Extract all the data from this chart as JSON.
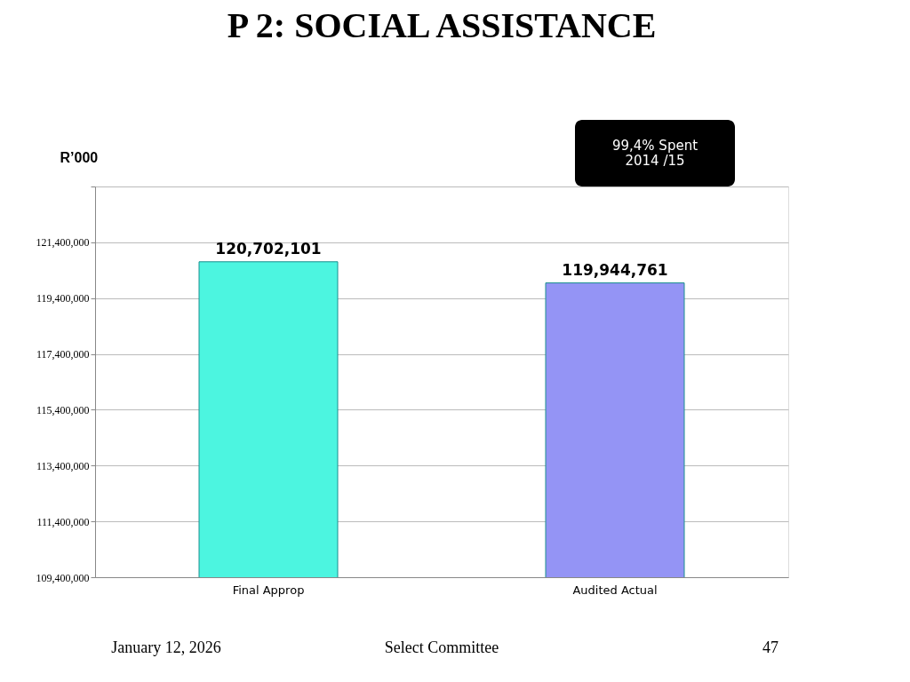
{
  "chart_data": {
    "type": "bar",
    "title": "P 2: SOCIAL ASSISTANCE",
    "ylabel": "R’000",
    "categories": [
      "Final Approp",
      "Audited Actual"
    ],
    "values": [
      120702101,
      119944761
    ],
    "value_labels": [
      "120,702,101",
      "119,944,761"
    ],
    "colors": [
      "#4cf5e0",
      "#9494f5"
    ],
    "ylim": [
      109400000,
      123400000
    ],
    "yticks": [
      {
        "value": 109400000,
        "label": "109,400,000"
      },
      {
        "value": 111400000,
        "label": "111,400,000"
      },
      {
        "value": 113400000,
        "label": "113,400,000"
      },
      {
        "value": 115400000,
        "label": "115,400,000"
      },
      {
        "value": 117400000,
        "label": "117,400,000"
      },
      {
        "value": 119400000,
        "label": "119,400,000"
      },
      {
        "value": 121400000,
        "label": "121,400,000"
      },
      {
        "value": 123400000,
        "label": null
      }
    ],
    "grid": "y",
    "annotations": [
      "99,4% Spent\n2014 /15",
      "January 12, 2026",
      "Select Committee",
      "47"
    ]
  }
}
